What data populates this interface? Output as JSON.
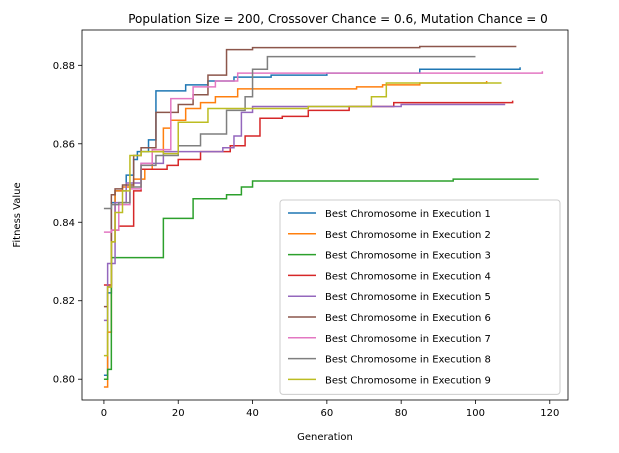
{
  "chart_data": {
    "type": "line",
    "title": "Population Size = 200, Crossover Chance = 0.6, Mutation Chance = 0",
    "xlabel": "Generation",
    "ylabel": "Fitness Value",
    "xlim": [
      -5.9,
      124.9
    ],
    "ylim": [
      0.7947,
      0.889
    ],
    "xticks": [
      0,
      20,
      40,
      60,
      80,
      100,
      120
    ],
    "yticks": [
      0.8,
      0.82,
      0.84,
      0.86,
      0.88
    ],
    "ytick_labels": [
      "0.80",
      "0.82",
      "0.84",
      "0.86",
      "0.88"
    ],
    "grid": false,
    "legend_position": "lower-right",
    "series": [
      {
        "name": "Best Chromosome in Execution 1",
        "color": "#1f77b4",
        "points": [
          [
            0,
            0.801
          ],
          [
            1,
            0.822
          ],
          [
            2,
            0.845
          ],
          [
            3,
            0.848
          ],
          [
            6,
            0.852
          ],
          [
            8,
            0.856
          ],
          [
            9,
            0.858
          ],
          [
            12,
            0.861
          ],
          [
            14,
            0.8735
          ],
          [
            22,
            0.875
          ],
          [
            28,
            0.876
          ],
          [
            35,
            0.877
          ],
          [
            45,
            0.8775
          ],
          [
            60,
            0.878
          ],
          [
            85,
            0.879
          ],
          [
            112,
            0.8795
          ]
        ]
      },
      {
        "name": "Best Chromosome in Execution 2",
        "color": "#ff7f0e",
        "points": [
          [
            0,
            0.798
          ],
          [
            1,
            0.812
          ],
          [
            2,
            0.835
          ],
          [
            3,
            0.848
          ],
          [
            5,
            0.849
          ],
          [
            8,
            0.851
          ],
          [
            11,
            0.8535
          ],
          [
            13,
            0.858
          ],
          [
            16,
            0.864
          ],
          [
            18,
            0.866
          ],
          [
            22,
            0.869
          ],
          [
            26,
            0.8705
          ],
          [
            30,
            0.872
          ],
          [
            36,
            0.874
          ],
          [
            55,
            0.874
          ],
          [
            68,
            0.8745
          ],
          [
            75,
            0.875
          ],
          [
            85,
            0.8755
          ],
          [
            103,
            0.876
          ]
        ]
      },
      {
        "name": "Best Chromosome in Execution 3",
        "color": "#2ca02c",
        "points": [
          [
            0,
            0.8
          ],
          [
            1,
            0.8025
          ],
          [
            2,
            0.831
          ],
          [
            12,
            0.831
          ],
          [
            16,
            0.841
          ],
          [
            24,
            0.846
          ],
          [
            33,
            0.847
          ],
          [
            37,
            0.849
          ],
          [
            40,
            0.8505
          ],
          [
            90,
            0.8505
          ],
          [
            94,
            0.851
          ],
          [
            117,
            0.851
          ]
        ]
      },
      {
        "name": "Best Chromosome in Execution 4",
        "color": "#d62728",
        "points": [
          [
            0,
            0.824
          ],
          [
            2,
            0.838
          ],
          [
            4,
            0.839
          ],
          [
            8,
            0.848
          ],
          [
            10,
            0.8535
          ],
          [
            17,
            0.8545
          ],
          [
            20,
            0.856
          ],
          [
            26,
            0.858
          ],
          [
            34,
            0.8595
          ],
          [
            38,
            0.862
          ],
          [
            42,
            0.8665
          ],
          [
            48,
            0.867
          ],
          [
            55,
            0.8685
          ],
          [
            66,
            0.8695
          ],
          [
            78,
            0.8705
          ],
          [
            110,
            0.871
          ]
        ]
      },
      {
        "name": "Best Chromosome in Execution 5",
        "color": "#9467bd",
        "points": [
          [
            0,
            0.815
          ],
          [
            1,
            0.8295
          ],
          [
            3,
            0.845
          ],
          [
            6,
            0.85
          ],
          [
            10,
            0.855
          ],
          [
            16,
            0.858
          ],
          [
            32,
            0.859
          ],
          [
            35,
            0.862
          ],
          [
            37,
            0.868
          ],
          [
            40,
            0.8695
          ],
          [
            60,
            0.8695
          ],
          [
            80,
            0.87
          ],
          [
            108,
            0.87
          ]
        ]
      },
      {
        "name": "Best Chromosome in Execution 6",
        "color": "#8c564b",
        "points": [
          [
            0,
            0.8185
          ],
          [
            1,
            0.8235
          ],
          [
            2,
            0.847
          ],
          [
            3,
            0.8485
          ],
          [
            5,
            0.8495
          ],
          [
            8,
            0.857
          ],
          [
            10,
            0.859
          ],
          [
            14,
            0.868
          ],
          [
            20,
            0.87
          ],
          [
            24,
            0.8725
          ],
          [
            28,
            0.8775
          ],
          [
            33,
            0.884
          ],
          [
            40,
            0.8845
          ],
          [
            60,
            0.8845
          ],
          [
            85,
            0.8848
          ],
          [
            111,
            0.8848
          ]
        ]
      },
      {
        "name": "Best Chromosome in Execution 7",
        "color": "#e377c2",
        "points": [
          [
            0,
            0.8375
          ],
          [
            2,
            0.838
          ],
          [
            4,
            0.8445
          ],
          [
            7,
            0.8485
          ],
          [
            10,
            0.855
          ],
          [
            13,
            0.8585
          ],
          [
            18,
            0.8715
          ],
          [
            24,
            0.8745
          ],
          [
            30,
            0.876
          ],
          [
            36,
            0.878
          ],
          [
            50,
            0.878
          ],
          [
            80,
            0.878
          ],
          [
            110,
            0.878
          ],
          [
            118,
            0.8785
          ]
        ]
      },
      {
        "name": "Best Chromosome in Execution 8",
        "color": "#7f7f7f",
        "points": [
          [
            0,
            0.8435
          ],
          [
            2,
            0.8445
          ],
          [
            4,
            0.845
          ],
          [
            7,
            0.849
          ],
          [
            10,
            0.8545
          ],
          [
            14,
            0.857
          ],
          [
            20,
            0.8595
          ],
          [
            26,
            0.8625
          ],
          [
            33,
            0.8685
          ],
          [
            38,
            0.872
          ],
          [
            40,
            0.879
          ],
          [
            44,
            0.8822
          ],
          [
            80,
            0.8822
          ],
          [
            100,
            0.8822
          ]
        ]
      },
      {
        "name": "Best Chromosome in Execution 9",
        "color": "#bcbd22",
        "points": [
          [
            0,
            0.806
          ],
          [
            1,
            0.8235
          ],
          [
            2,
            0.835
          ],
          [
            3,
            0.8425
          ],
          [
            5,
            0.848
          ],
          [
            7,
            0.857
          ],
          [
            10,
            0.858
          ],
          [
            16,
            0.8575
          ],
          [
            20,
            0.8655
          ],
          [
            28,
            0.869
          ],
          [
            40,
            0.869
          ],
          [
            55,
            0.8695
          ],
          [
            72,
            0.872
          ],
          [
            76,
            0.8755
          ],
          [
            90,
            0.8755
          ],
          [
            107,
            0.8755
          ]
        ]
      }
    ]
  }
}
